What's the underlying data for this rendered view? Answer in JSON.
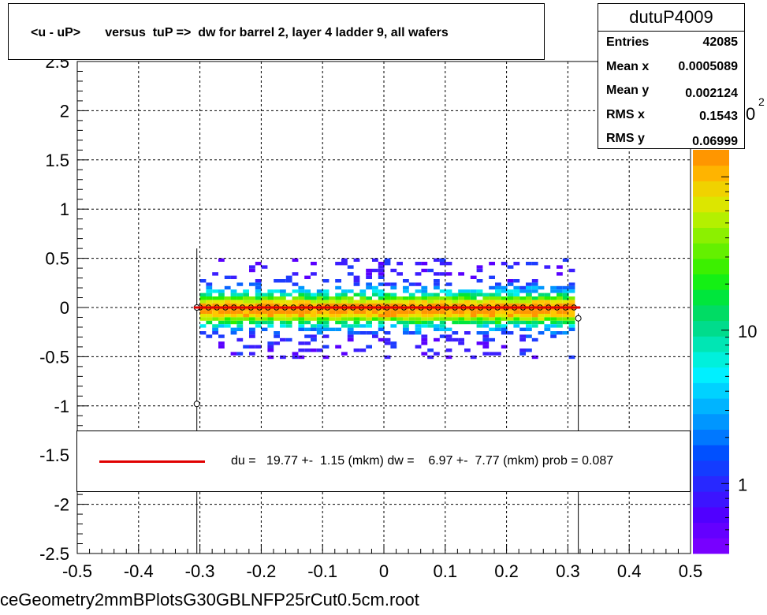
{
  "title": "<u - uP>       versus  tuP =>  dw for barrel 2, layer 4 ladder 9, all wafers",
  "stats": {
    "name": "dutuP4009",
    "rows": [
      {
        "label": "Entries",
        "value": "42085"
      },
      {
        "label": "Mean x",
        "value": "0.0005089"
      },
      {
        "label": "Mean y",
        "value": "0.002124"
      },
      {
        "label": "RMS x",
        "value": "0.1543"
      },
      {
        "label": "RMS y",
        "value": "0.06999"
      }
    ]
  },
  "legend": {
    "text": "du =   19.77 +-  1.15 (mkm) dw =    6.97 +-  7.77 (mkm) prob = 0.087",
    "line_color": "#e00000"
  },
  "filename": "ceGeometry2mmBPlotsG30GBLNFP25rCut0.5cm.root",
  "chart_data": {
    "type": "heatmap",
    "xlim": [
      -0.5,
      0.5
    ],
    "ylim": [
      -2.5,
      2.5
    ],
    "x_ticks": [
      "-0.5",
      "-0.4",
      "-0.3",
      "-0.2",
      "-0.1",
      "0",
      "0.1",
      "0.2",
      "0.3",
      "0.4",
      "0.5"
    ],
    "y_ticks": [
      "-2.5",
      "-2",
      "-1.5",
      "-1",
      "-0.5",
      "0",
      "0.5",
      "1",
      "1.5",
      "2",
      "2.5"
    ],
    "grid": true,
    "colorbar_labels": [
      {
        "label": "1",
        "value": 1
      },
      {
        "label": "10",
        "value": 10
      }
    ],
    "colorbar_partial_label": "0",
    "colorbar_partial_exponent": "2",
    "band": {
      "x_range": [
        -0.3,
        0.31
      ],
      "y_center": 0,
      "y_halfwidth": 0.5
    },
    "profile_points": [
      {
        "x": -0.305,
        "y": 0.0,
        "err": 0.6
      },
      {
        "x": -0.305,
        "y": -0.98,
        "err": 0
      },
      {
        "x": 0.317,
        "y": -0.11,
        "err": 0.05
      }
    ],
    "profile_x_range": [
      -0.3,
      0.31
    ],
    "fit_line": {
      "x_range": [
        -0.31,
        0.32
      ],
      "y": 0.0,
      "color": "#e00000"
    }
  }
}
